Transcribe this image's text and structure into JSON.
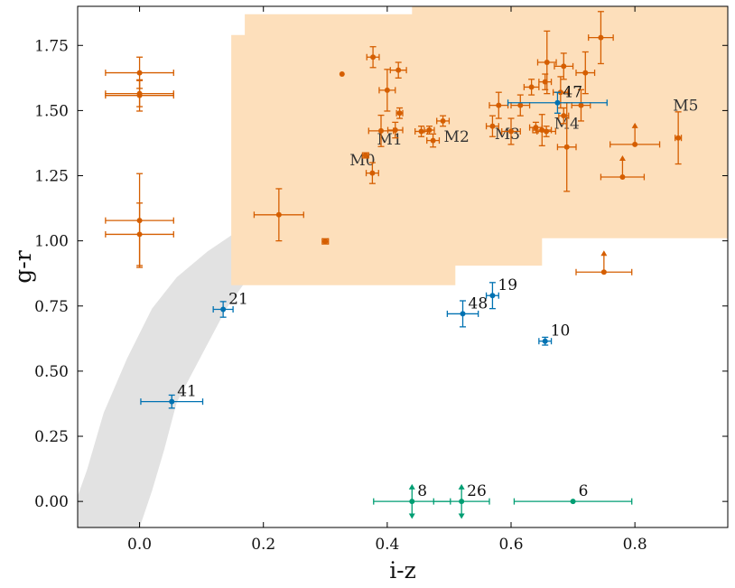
{
  "chart_data": {
    "type": "scatter",
    "title": "",
    "xlabel": "i-z",
    "ylabel": "g-r",
    "xlim": [
      -0.1,
      0.95
    ],
    "ylim": [
      -0.1,
      1.9
    ],
    "xticks": [
      0.0,
      0.2,
      0.4,
      0.6,
      0.8
    ],
    "xtick_labels": [
      "0.0",
      "0.2",
      "0.4",
      "0.6",
      "0.8"
    ],
    "yticks": [
      0.0,
      0.25,
      0.5,
      0.75,
      1.0,
      1.25,
      1.5,
      1.75
    ],
    "ytick_labels": [
      "0.00",
      "0.25",
      "0.50",
      "0.75",
      "1.00",
      "1.25",
      "1.50",
      "1.75"
    ],
    "grid": false,
    "colors": {
      "orange": "#d55e00",
      "blue": "#0072b2",
      "green": "#009e73",
      "region": "#fddfbb",
      "locus": "#e2e2e2"
    },
    "m_region": [
      [
        0.148,
        0.83
      ],
      [
        0.148,
        1.79
      ],
      [
        0.17,
        1.79
      ],
      [
        0.17,
        1.87
      ],
      [
        0.44,
        1.87
      ],
      [
        0.44,
        1.9
      ],
      [
        0.95,
        1.9
      ],
      [
        0.95,
        1.01
      ],
      [
        0.65,
        1.01
      ],
      [
        0.65,
        0.905
      ],
      [
        0.51,
        0.905
      ],
      [
        0.51,
        0.83
      ]
    ],
    "stellar_locus": [
      [
        -0.1,
        0.02
      ],
      [
        -0.085,
        0.12
      ],
      [
        -0.058,
        0.34
      ],
      [
        -0.02,
        0.55
      ],
      [
        0.02,
        0.74
      ],
      [
        0.06,
        0.86
      ],
      [
        0.11,
        0.96
      ],
      [
        0.16,
        1.04
      ],
      [
        0.2,
        1.1
      ],
      [
        0.24,
        1.13
      ],
      [
        0.26,
        1.12
      ],
      [
        0.2,
        0.94
      ],
      [
        0.14,
        0.74
      ],
      [
        0.1,
        0.56
      ],
      [
        0.06,
        0.38
      ],
      [
        0.04,
        0.2
      ],
      [
        0.02,
        0.04
      ],
      [
        0.0,
        -0.1
      ],
      [
        -0.1,
        -0.1
      ]
    ],
    "spectral_type_labels": [
      {
        "text": "M0",
        "x": 0.36,
        "y": 1.29
      },
      {
        "text": "M1",
        "x": 0.404,
        "y": 1.37
      },
      {
        "text": "M2",
        "x": 0.512,
        "y": 1.38
      },
      {
        "text": "M3",
        "x": 0.594,
        "y": 1.39
      },
      {
        "text": "M4",
        "x": 0.69,
        "y": 1.43
      },
      {
        "text": "M5",
        "x": 0.882,
        "y": 1.5
      }
    ],
    "series": [
      {
        "name": "orange",
        "color": "#d55e00",
        "points": [
          {
            "x": 0.0,
            "y": 1.645,
            "xerr": 0.055,
            "yerr": 0.06
          },
          {
            "x": 0.0,
            "y": 1.565,
            "xerr": 0.055,
            "yerr": 0.05
          },
          {
            "x": 0.0,
            "y": 1.558,
            "xerr": 0.055,
            "yerr": 0.06
          },
          {
            "x": 0.0,
            "y": 1.078,
            "xerr": 0.055,
            "yerr": 0.18
          },
          {
            "x": 0.0,
            "y": 1.025,
            "xerr": 0.055,
            "yerr": 0.12
          },
          {
            "x": 0.225,
            "y": 1.1,
            "xerr": 0.04,
            "yerr": 0.1
          },
          {
            "x": 0.3,
            "y": 0.998,
            "xerr": 0.005,
            "yerr": 0.01
          },
          {
            "x": 0.327,
            "y": 1.64,
            "xerr": 0,
            "yerr": 0
          },
          {
            "x": 0.365,
            "y": 1.328,
            "xerr": 0.005,
            "yerr": 0.01
          },
          {
            "x": 0.376,
            "y": 1.26,
            "xerr": 0.01,
            "yerr": 0.04
          },
          {
            "x": 0.377,
            "y": 1.705,
            "xerr": 0.01,
            "yerr": 0.04
          },
          {
            "x": 0.39,
            "y": 1.422,
            "xerr": 0.02,
            "yerr": 0.06
          },
          {
            "x": 0.4,
            "y": 1.578,
            "xerr": 0.013,
            "yerr": 0.08
          },
          {
            "x": 0.413,
            "y": 1.425,
            "xerr": 0.012,
            "yerr": 0.03
          },
          {
            "x": 0.418,
            "y": 1.655,
            "xerr": 0.013,
            "yerr": 0.03
          },
          {
            "x": 0.42,
            "y": 1.49,
            "xerr": 0.005,
            "yerr": 0.02
          },
          {
            "x": 0.455,
            "y": 1.42,
            "xerr": 0.01,
            "yerr": 0.02
          },
          {
            "x": 0.468,
            "y": 1.425,
            "xerr": 0.008,
            "yerr": 0.015
          },
          {
            "x": 0.474,
            "y": 1.385,
            "xerr": 0.01,
            "yerr": 0.025
          },
          {
            "x": 0.49,
            "y": 1.46,
            "xerr": 0.01,
            "yerr": 0.02
          },
          {
            "x": 0.57,
            "y": 1.44,
            "xerr": 0.01,
            "yerr": 0.04
          },
          {
            "x": 0.58,
            "y": 1.52,
            "xerr": 0.015,
            "yerr": 0.05
          },
          {
            "x": 0.6,
            "y": 1.42,
            "xerr": 0.015,
            "yerr": 0.05
          },
          {
            "x": 0.615,
            "y": 1.52,
            "xerr": 0.015,
            "yerr": 0.04
          },
          {
            "x": 0.633,
            "y": 1.59,
            "xerr": 0.012,
            "yerr": 0.03
          },
          {
            "x": 0.64,
            "y": 1.435,
            "xerr": 0.01,
            "yerr": 0.02
          },
          {
            "x": 0.65,
            "y": 1.425,
            "xerr": 0.015,
            "yerr": 0.06
          },
          {
            "x": 0.655,
            "y": 1.61,
            "xerr": 0.01,
            "yerr": 0.03
          },
          {
            "x": 0.657,
            "y": 1.42,
            "xerr": 0.015,
            "yerr": 0.02
          },
          {
            "x": 0.658,
            "y": 1.685,
            "xerr": 0.015,
            "yerr": 0.12
          },
          {
            "x": 0.68,
            "y": 1.57,
            "xerr": 0.012,
            "yerr": 0.06
          },
          {
            "x": 0.685,
            "y": 1.48,
            "xerr": 0.008,
            "yerr": 0.03
          },
          {
            "x": 0.685,
            "y": 1.67,
            "xerr": 0.015,
            "yerr": 0.05
          },
          {
            "x": 0.69,
            "y": 1.36,
            "xerr": 0.015,
            "yerr": 0.17
          },
          {
            "x": 0.713,
            "y": 1.52,
            "xerr": 0.015,
            "yerr": 0.06
          },
          {
            "x": 0.72,
            "y": 1.645,
            "xerr": 0.015,
            "yerr": 0.08
          },
          {
            "x": 0.745,
            "y": 1.78,
            "xerr": 0.02,
            "yerr": 0.1
          },
          {
            "x": 0.8,
            "y": 1.37,
            "xerr": 0.04,
            "yerr": 0,
            "upper_arrow": true
          },
          {
            "x": 0.78,
            "y": 1.245,
            "xerr": 0.035,
            "yerr": 0,
            "upper_arrow": true
          },
          {
            "x": 0.75,
            "y": 0.88,
            "xerr": 0.045,
            "yerr": 0,
            "upper_arrow": true
          },
          {
            "x": 0.87,
            "y": 1.395,
            "xerr": 0.005,
            "yerr": 0.1
          }
        ]
      },
      {
        "name": "blue",
        "color": "#0072b2",
        "points": [
          {
            "x": 0.675,
            "y": 1.53,
            "xerr": 0.08,
            "yerr": 0.04,
            "label": "47"
          },
          {
            "x": 0.57,
            "y": 0.79,
            "xerr": 0.01,
            "yerr": 0.05,
            "label": "19"
          },
          {
            "x": 0.522,
            "y": 0.72,
            "xerr": 0.025,
            "yerr": 0.05,
            "label": "48"
          },
          {
            "x": 0.655,
            "y": 0.615,
            "xerr": 0.01,
            "yerr": 0.015,
            "label": "10"
          },
          {
            "x": 0.135,
            "y": 0.737,
            "xerr": 0.016,
            "yerr": 0.03,
            "label": "21"
          },
          {
            "x": 0.052,
            "y": 0.383,
            "xerr": 0.05,
            "yerr": 0.025,
            "label": "41"
          }
        ]
      },
      {
        "name": "green",
        "color": "#009e73",
        "points": [
          {
            "x": 0.44,
            "y": 0.0,
            "xerr": 0.062,
            "yerr": 0.06,
            "arrows": true,
            "label": "8"
          },
          {
            "x": 0.52,
            "y": 0.0,
            "xerr": 0.045,
            "yerr": 0.06,
            "arrows": true,
            "label": "26"
          },
          {
            "x": 0.7,
            "y": 0.0,
            "xerr": 0.095,
            "yerr": 0,
            "label": "6"
          }
        ]
      }
    ]
  }
}
